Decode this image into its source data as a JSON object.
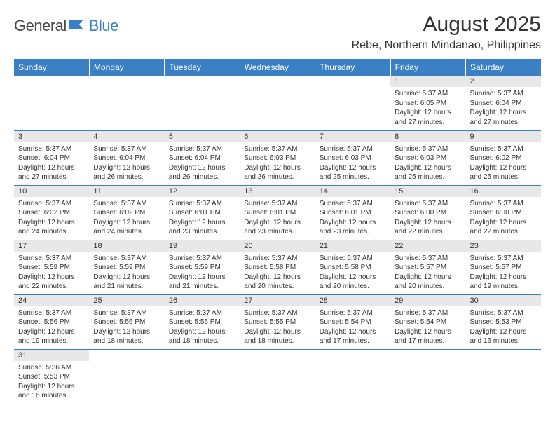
{
  "logo": {
    "part1": "General",
    "part2": "Blue"
  },
  "title": "August 2025",
  "location": "Rebe, Northern Mindanao, Philippines",
  "colors": {
    "header_bg": "#3b7fc4",
    "header_fg": "#ffffff",
    "daynum_bg": "#e8e8e8",
    "row_border": "#3b7fc4",
    "logo_gray": "#4a4a4a",
    "logo_blue": "#3b7fc4"
  },
  "weekdays": [
    "Sunday",
    "Monday",
    "Tuesday",
    "Wednesday",
    "Thursday",
    "Friday",
    "Saturday"
  ],
  "weeks": [
    [
      null,
      null,
      null,
      null,
      null,
      {
        "n": "1",
        "sr": "Sunrise: 5:37 AM",
        "ss": "Sunset: 6:05 PM",
        "dl1": "Daylight: 12 hours",
        "dl2": "and 27 minutes."
      },
      {
        "n": "2",
        "sr": "Sunrise: 5:37 AM",
        "ss": "Sunset: 6:04 PM",
        "dl1": "Daylight: 12 hours",
        "dl2": "and 27 minutes."
      }
    ],
    [
      {
        "n": "3",
        "sr": "Sunrise: 5:37 AM",
        "ss": "Sunset: 6:04 PM",
        "dl1": "Daylight: 12 hours",
        "dl2": "and 27 minutes."
      },
      {
        "n": "4",
        "sr": "Sunrise: 5:37 AM",
        "ss": "Sunset: 6:04 PM",
        "dl1": "Daylight: 12 hours",
        "dl2": "and 26 minutes."
      },
      {
        "n": "5",
        "sr": "Sunrise: 5:37 AM",
        "ss": "Sunset: 6:04 PM",
        "dl1": "Daylight: 12 hours",
        "dl2": "and 26 minutes."
      },
      {
        "n": "6",
        "sr": "Sunrise: 5:37 AM",
        "ss": "Sunset: 6:03 PM",
        "dl1": "Daylight: 12 hours",
        "dl2": "and 26 minutes."
      },
      {
        "n": "7",
        "sr": "Sunrise: 5:37 AM",
        "ss": "Sunset: 6:03 PM",
        "dl1": "Daylight: 12 hours",
        "dl2": "and 25 minutes."
      },
      {
        "n": "8",
        "sr": "Sunrise: 5:37 AM",
        "ss": "Sunset: 6:03 PM",
        "dl1": "Daylight: 12 hours",
        "dl2": "and 25 minutes."
      },
      {
        "n": "9",
        "sr": "Sunrise: 5:37 AM",
        "ss": "Sunset: 6:02 PM",
        "dl1": "Daylight: 12 hours",
        "dl2": "and 25 minutes."
      }
    ],
    [
      {
        "n": "10",
        "sr": "Sunrise: 5:37 AM",
        "ss": "Sunset: 6:02 PM",
        "dl1": "Daylight: 12 hours",
        "dl2": "and 24 minutes."
      },
      {
        "n": "11",
        "sr": "Sunrise: 5:37 AM",
        "ss": "Sunset: 6:02 PM",
        "dl1": "Daylight: 12 hours",
        "dl2": "and 24 minutes."
      },
      {
        "n": "12",
        "sr": "Sunrise: 5:37 AM",
        "ss": "Sunset: 6:01 PM",
        "dl1": "Daylight: 12 hours",
        "dl2": "and 23 minutes."
      },
      {
        "n": "13",
        "sr": "Sunrise: 5:37 AM",
        "ss": "Sunset: 6:01 PM",
        "dl1": "Daylight: 12 hours",
        "dl2": "and 23 minutes."
      },
      {
        "n": "14",
        "sr": "Sunrise: 5:37 AM",
        "ss": "Sunset: 6:01 PM",
        "dl1": "Daylight: 12 hours",
        "dl2": "and 23 minutes."
      },
      {
        "n": "15",
        "sr": "Sunrise: 5:37 AM",
        "ss": "Sunset: 6:00 PM",
        "dl1": "Daylight: 12 hours",
        "dl2": "and 22 minutes."
      },
      {
        "n": "16",
        "sr": "Sunrise: 5:37 AM",
        "ss": "Sunset: 6:00 PM",
        "dl1": "Daylight: 12 hours",
        "dl2": "and 22 minutes."
      }
    ],
    [
      {
        "n": "17",
        "sr": "Sunrise: 5:37 AM",
        "ss": "Sunset: 5:59 PM",
        "dl1": "Daylight: 12 hours",
        "dl2": "and 22 minutes."
      },
      {
        "n": "18",
        "sr": "Sunrise: 5:37 AM",
        "ss": "Sunset: 5:59 PM",
        "dl1": "Daylight: 12 hours",
        "dl2": "and 21 minutes."
      },
      {
        "n": "19",
        "sr": "Sunrise: 5:37 AM",
        "ss": "Sunset: 5:59 PM",
        "dl1": "Daylight: 12 hours",
        "dl2": "and 21 minutes."
      },
      {
        "n": "20",
        "sr": "Sunrise: 5:37 AM",
        "ss": "Sunset: 5:58 PM",
        "dl1": "Daylight: 12 hours",
        "dl2": "and 20 minutes."
      },
      {
        "n": "21",
        "sr": "Sunrise: 5:37 AM",
        "ss": "Sunset: 5:58 PM",
        "dl1": "Daylight: 12 hours",
        "dl2": "and 20 minutes."
      },
      {
        "n": "22",
        "sr": "Sunrise: 5:37 AM",
        "ss": "Sunset: 5:57 PM",
        "dl1": "Daylight: 12 hours",
        "dl2": "and 20 minutes."
      },
      {
        "n": "23",
        "sr": "Sunrise: 5:37 AM",
        "ss": "Sunset: 5:57 PM",
        "dl1": "Daylight: 12 hours",
        "dl2": "and 19 minutes."
      }
    ],
    [
      {
        "n": "24",
        "sr": "Sunrise: 5:37 AM",
        "ss": "Sunset: 5:56 PM",
        "dl1": "Daylight: 12 hours",
        "dl2": "and 19 minutes."
      },
      {
        "n": "25",
        "sr": "Sunrise: 5:37 AM",
        "ss": "Sunset: 5:56 PM",
        "dl1": "Daylight: 12 hours",
        "dl2": "and 18 minutes."
      },
      {
        "n": "26",
        "sr": "Sunrise: 5:37 AM",
        "ss": "Sunset: 5:55 PM",
        "dl1": "Daylight: 12 hours",
        "dl2": "and 18 minutes."
      },
      {
        "n": "27",
        "sr": "Sunrise: 5:37 AM",
        "ss": "Sunset: 5:55 PM",
        "dl1": "Daylight: 12 hours",
        "dl2": "and 18 minutes."
      },
      {
        "n": "28",
        "sr": "Sunrise: 5:37 AM",
        "ss": "Sunset: 5:54 PM",
        "dl1": "Daylight: 12 hours",
        "dl2": "and 17 minutes."
      },
      {
        "n": "29",
        "sr": "Sunrise: 5:37 AM",
        "ss": "Sunset: 5:54 PM",
        "dl1": "Daylight: 12 hours",
        "dl2": "and 17 minutes."
      },
      {
        "n": "30",
        "sr": "Sunrise: 5:37 AM",
        "ss": "Sunset: 5:53 PM",
        "dl1": "Daylight: 12 hours",
        "dl2": "and 16 minutes."
      }
    ],
    [
      {
        "n": "31",
        "sr": "Sunrise: 5:36 AM",
        "ss": "Sunset: 5:53 PM",
        "dl1": "Daylight: 12 hours",
        "dl2": "and 16 minutes."
      },
      null,
      null,
      null,
      null,
      null,
      null
    ]
  ]
}
